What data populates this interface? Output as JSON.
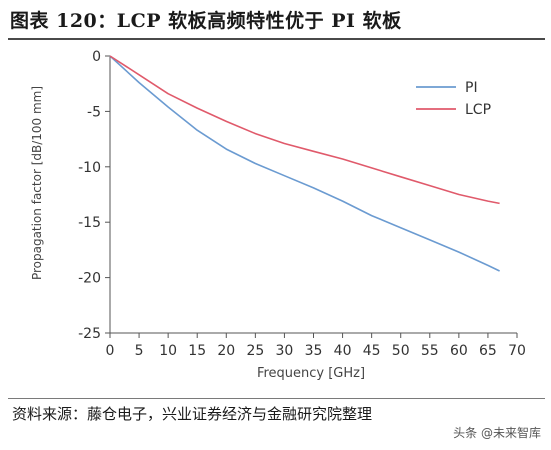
{
  "figure": {
    "title": "图表 120：LCP 软板高频特性优于 PI 软板",
    "source": "资料来源：藤仓电子，兴业证券经济与金融研究院整理",
    "watermark": "头条 @未来智库"
  },
  "chart_data": {
    "type": "line",
    "title": "",
    "xlabel": "Frequency [GHz]",
    "ylabel": "Propagation factor [dB/100 mm]",
    "xlim": [
      0,
      70
    ],
    "ylim": [
      -25,
      0
    ],
    "xticks": [
      0,
      5,
      10,
      15,
      20,
      25,
      30,
      35,
      40,
      45,
      50,
      55,
      60,
      65,
      70
    ],
    "yticks": [
      0,
      -5,
      -10,
      -15,
      -20,
      -25
    ],
    "grid": false,
    "legend_position": "top-right",
    "series": [
      {
        "name": "PI",
        "color": "#6b9bd1",
        "x": [
          0,
          5,
          10,
          15,
          20,
          25,
          30,
          35,
          40,
          45,
          50,
          55,
          60,
          65,
          67
        ],
        "y": [
          0,
          -2.4,
          -4.6,
          -6.7,
          -8.4,
          -9.7,
          -10.8,
          -11.9,
          -13.1,
          -14.4,
          -15.5,
          -16.6,
          -17.7,
          -18.9,
          -19.4
        ]
      },
      {
        "name": "LCP",
        "color": "#e05a6b",
        "x": [
          0,
          5,
          10,
          15,
          20,
          25,
          30,
          35,
          40,
          45,
          50,
          55,
          60,
          65,
          67
        ],
        "y": [
          0,
          -1.7,
          -3.4,
          -4.7,
          -5.9,
          -7.0,
          -7.9,
          -8.6,
          -9.3,
          -10.1,
          -10.9,
          -11.7,
          -12.5,
          -13.1,
          -13.3
        ]
      }
    ]
  }
}
